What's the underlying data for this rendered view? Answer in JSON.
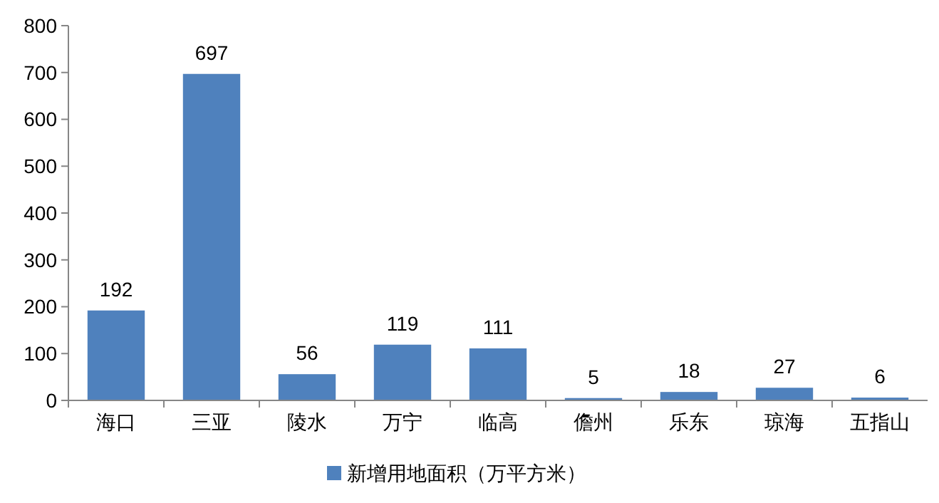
{
  "chart_data": {
    "type": "bar",
    "categories": [
      "海口",
      "三亚",
      "陵水",
      "万宁",
      "临高",
      "儋州",
      "乐东",
      "琼海",
      "五指山"
    ],
    "series": [
      {
        "name": "新增用地面积（万平方米）",
        "color": "#4f81bd",
        "values": [
          192,
          697,
          56,
          119,
          111,
          5,
          18,
          27,
          6
        ]
      }
    ],
    "ylim": [
      0,
      800
    ],
    "yticks": [
      0,
      100,
      200,
      300,
      400,
      500,
      600,
      700,
      800
    ],
    "data_labels": true,
    "legend": "bottom",
    "grid": false
  }
}
